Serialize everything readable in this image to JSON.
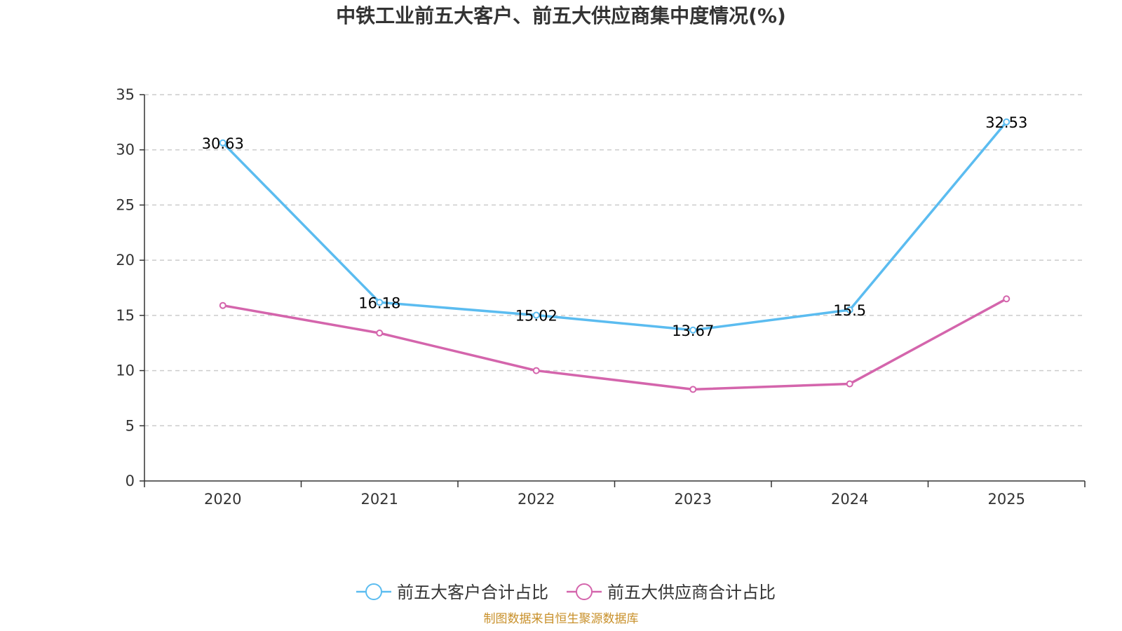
{
  "chart_data": {
    "type": "line",
    "title": "中铁工业前五大客户、前五大供应商集中度情况(%)",
    "xlabel": "",
    "ylabel": "",
    "categories": [
      "2020",
      "2021",
      "2022",
      "2023",
      "2024",
      "2025"
    ],
    "ylim": [
      0,
      35
    ],
    "yticks": [
      0,
      5,
      10,
      15,
      20,
      25,
      30,
      35
    ],
    "grid": true,
    "legend_position": "bottom",
    "series": [
      {
        "name": "前五大客户合计占比",
        "color": "#5bbcf0",
        "values": [
          30.63,
          16.18,
          15.02,
          13.67,
          15.5,
          32.53
        ],
        "data_labels": [
          "30.63",
          "16.18",
          "15.02",
          "13.67",
          "15.5",
          "32.53"
        ]
      },
      {
        "name": "前五大供应商合计占比",
        "color": "#d465ac",
        "values": [
          15.9,
          13.4,
          10.0,
          8.3,
          8.8,
          16.5
        ]
      }
    ]
  },
  "source_text": "制图数据来自恒生聚源数据库",
  "source_color": "#c8902a"
}
